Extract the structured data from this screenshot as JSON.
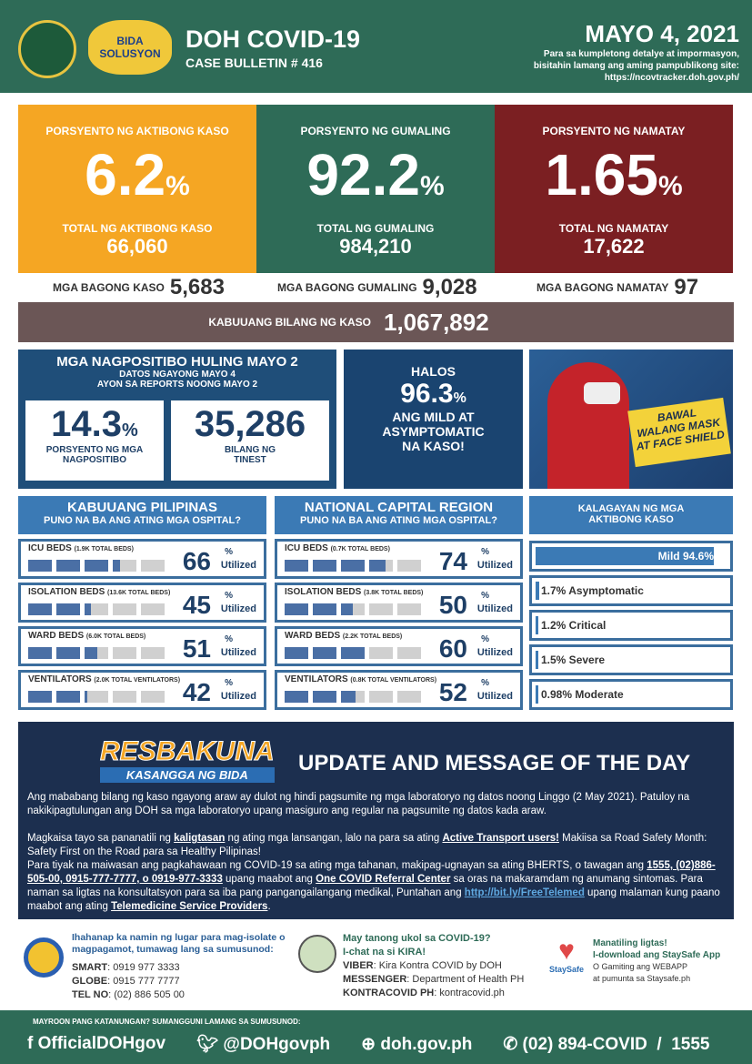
{
  "header": {
    "title": "DOH COVID-19",
    "bulletin": "CASE BULLETIN # 416",
    "date": "MAYO 4, 2021",
    "info1": "Para sa kumpletong detalye at impormasyon,",
    "info2": "bisitahin lamang ang aming pampublikong site:",
    "url": "https://ncovtracker.doh.gov.ph/",
    "logo1": "DEPARTMENT OF HEALTH",
    "logo2": "BIDA SOLUSYON"
  },
  "cards": [
    {
      "label": "PORSYENTO NG AKTIBONG KASO",
      "pct": "6.2",
      "sub": "TOTAL NG AKTIBONG KASO",
      "num": "66,060",
      "color": "#f5a623"
    },
    {
      "label": "PORSYENTO NG GUMALING",
      "pct": "92.2",
      "sub": "TOTAL NG GUMALING",
      "num": "984,210",
      "color": "#2e6b57"
    },
    {
      "label": "PORSYENTO NG NAMATAY",
      "pct": "1.65",
      "sub": "TOTAL NG NAMATAY",
      "num": "17,622",
      "color": "#7b1f22"
    }
  ],
  "pct_sign": "%",
  "new": [
    {
      "label": "MGA BAGONG KASO",
      "value": "5,683"
    },
    {
      "label": "MGA BAGONG GUMALING",
      "value": "9,028"
    },
    {
      "label": "MGA BAGONG NAMATAY",
      "value": "97"
    }
  ],
  "total": {
    "label": "KABUUANG BILANG NG KASO",
    "value": "1,067,892"
  },
  "positivity": {
    "title": "MGA NAGPOSITIBO HULING MAYO 2",
    "sub1": "DATOS NGAYONG MAYO 4",
    "sub2": "AYON SA REPORTS NOONG MAYO 2",
    "rate": "14.3",
    "rate_label1": "PORSYENTO NG MGA",
    "rate_label2": "NAGPOSITIBO",
    "tests": "35,286",
    "tests_label1": "BILANG NG",
    "tests_label2": "TINEST"
  },
  "mild": {
    "l1": "HALOS",
    "pct": "96.3",
    "l2": "ANG MILD AT",
    "l3": "ASYMPTOMATIC",
    "l4": "NA KASO!"
  },
  "poster": {
    "text1": "BAWAL",
    "text2": "WALANG MASK",
    "text3": "AT FACE SHIELD"
  },
  "hospital": [
    {
      "title": "KABUUANG PILIPINAS",
      "sub": "PUNO NA BA ANG ATING MGA OSPITAL?",
      "rows": [
        {
          "name": "ICU BEDS",
          "total": "(1.9K TOTAL BEDS)",
          "pct": 66
        },
        {
          "name": "ISOLATION BEDS",
          "total": "(13.6K TOTAL BEDS)",
          "pct": 45
        },
        {
          "name": "WARD BEDS",
          "total": "(6.0K TOTAL BEDS)",
          "pct": 51
        },
        {
          "name": "VENTILATORS",
          "total": "(2.0K TOTAL VENTILATORS)",
          "pct": 42
        }
      ]
    },
    {
      "title": "NATIONAL CAPITAL REGION",
      "sub": "PUNO NA BA ANG ATING MGA OSPITAL?",
      "rows": [
        {
          "name": "ICU BEDS",
          "total": "(0.7K TOTAL BEDS)",
          "pct": 74
        },
        {
          "name": "ISOLATION BEDS",
          "total": "(3.8K TOTAL BEDS)",
          "pct": 50
        },
        {
          "name": "WARD BEDS",
          "total": "(2.2K TOTAL BEDS)",
          "pct": 60
        },
        {
          "name": "VENTILATORS",
          "total": "(0.8K TOTAL VENTILATORS)",
          "pct": 52
        }
      ]
    }
  ],
  "utilized": "Utilized",
  "status": {
    "title1": "KALAGAYAN NG MGA",
    "title2": "AKTIBONG KASO",
    "items": [
      {
        "label": "Mild 94.6%",
        "value": 94.6
      },
      {
        "label": "1.7% Asymptomatic",
        "value": 1.7
      },
      {
        "label": "1.2% Critical",
        "value": 1.2
      },
      {
        "label": "1.5% Severe",
        "value": 1.5
      },
      {
        "label": "0.98% Moderate",
        "value": 0.98
      }
    ]
  },
  "message": {
    "logo1": "RESBAKUNA",
    "logo2": "KASANGGA NG BIDA",
    "title": "UPDATE AND MESSAGE OF THE DAY",
    "p1": "Ang mababang bilang ng kaso ngayong araw ay dulot ng hindi pagsumite ng mga laboratoryo ng datos noong Linggo (2 May 2021). Patuloy na nakikipagtulungan ang DOH sa mga laboratoryo upang masiguro ang regular na pagsumite ng datos kada araw.",
    "p2a": "Magkaisa tayo sa pananatili ng ",
    "p2b": "kaligtasan",
    "p2c": " ng ating mga lansangan, lalo na para sa ating ",
    "p2d": "Active Transport users!",
    "p2e": " Makiisa sa Road Safety Month: Safety First on the Road para sa Healthy Pilipinas!",
    "p3a": "Para tiyak na maiwasan ang pagkahawaan ng COVID-19 sa ating mga tahanan, makipag-ugnayan sa ating BHERTS, o tawagan ang ",
    "p3b": "1555, (02)886-505-00, 0915-777-7777, o 0919-977-3333",
    "p3c": " upang maabot ang ",
    "p3d": "One COVID Referral Center",
    "p3e": " sa oras na makaramdam ng anumang sintomas. Para naman sa ligtas na konsultatsyon para sa iba pang pangangailangang  medikal, Puntahan ang ",
    "p3f": "http://bit.ly/FreeTelemed",
    "p3g": " upang malaman kung paano maabot ang ating ",
    "p3h": "Telemedicine Service Providers",
    "p3i": "."
  },
  "contacts": {
    "isolate": "Ihahanap ka namin ng lugar para mag-isolate o magpagamot, tumawag lang sa sumusunod:",
    "smart_l": "SMART",
    "smart": ": 0919 977 3333",
    "globe_l": "GLOBE",
    "globe": ": 0915 777 7777",
    "tel_l": "TEL NO",
    "tel": ": (02) 886 505 00",
    "kira1": "May tanong ukol sa COVID-19?",
    "kira2": "I-chat na si KIRA!",
    "viber_l": "VIBER",
    "viber": ": Kira Kontra COVID by DOH",
    "msgr_l": "MESSENGER",
    "msgr": ": Department of Health PH",
    "kc_l": "KONTRACOVID PH",
    "kc": ": kontracovid.ph",
    "ss1": "Manatiling ligtas!",
    "ss2": "I-download ang StaySafe App",
    "ss3": "O Gamiting ang WEBAPP",
    "ss4": "at pumunta sa Staysafe.ph",
    "ss_logo": "StaySafe"
  },
  "footer": {
    "note": "MAYROON PANG KATANUNGAN? SUMANGGUNI LAMANG SA SUMUSUNOD:",
    "fb": "OfficialDOHgov",
    "tw": "@DOHgovph",
    "web": "doh.gov.ph",
    "phone": "(02) 894-COVID  /  1555"
  }
}
